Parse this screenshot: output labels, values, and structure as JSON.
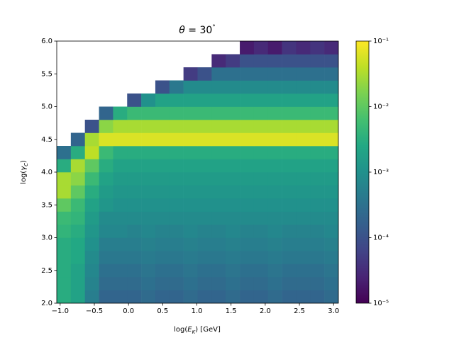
{
  "chart_data": {
    "type": "heatmap",
    "title": [
      "θ",
      " = 30",
      "°"
    ],
    "x_label": [
      "log(",
      "E",
      "K",
      ") [GeV]"
    ],
    "y_label": [
      "log(",
      "γ",
      "C",
      ")"
    ],
    "colormap": "viridis",
    "color_scale": "log",
    "clim": [
      1e-05,
      0.1
    ],
    "cticks": [
      {
        "value": 1e-05,
        "label": "10⁻⁵"
      },
      {
        "value": 0.0001,
        "label": "10⁻⁴"
      },
      {
        "value": 0.001,
        "label": "10⁻³"
      },
      {
        "value": 0.01,
        "label": "10⁻²"
      },
      {
        "value": 0.1,
        "label": "10⁻¹"
      }
    ],
    "xlim": [
      -1.05,
      3.07
    ],
    "ylim": [
      2.0,
      6.0
    ],
    "xticks": [
      {
        "value": -1.0,
        "label": "−1.0"
      },
      {
        "value": -0.5,
        "label": "−0.5"
      },
      {
        "value": 0.0,
        "label": "0.0"
      },
      {
        "value": 0.5,
        "label": "0.5"
      },
      {
        "value": 1.0,
        "label": "1.0"
      },
      {
        "value": 1.5,
        "label": "1.5"
      },
      {
        "value": 2.0,
        "label": "2.0"
      },
      {
        "value": 2.5,
        "label": "2.5"
      },
      {
        "value": 3.0,
        "label": "3.0"
      }
    ],
    "yticks": [
      {
        "value": 2.0,
        "label": "2.0"
      },
      {
        "value": 2.5,
        "label": "2.5"
      },
      {
        "value": 3.0,
        "label": "3.0"
      },
      {
        "value": 3.5,
        "label": "3.5"
      },
      {
        "value": 4.0,
        "label": "4.0"
      },
      {
        "value": 4.5,
        "label": "4.5"
      },
      {
        "value": 5.0,
        "label": "5.0"
      },
      {
        "value": 5.5,
        "label": "5.5"
      },
      {
        "value": 6.0,
        "label": "6.0"
      }
    ],
    "x_bins": [
      -1.05,
      -0.844,
      -0.638,
      -0.432,
      -0.226,
      -0.02,
      0.186,
      0.392,
      0.598,
      0.804,
      1.01,
      1.216,
      1.422,
      1.628,
      1.834,
      2.04,
      2.246,
      2.452,
      2.658,
      2.864,
      3.07
    ],
    "y_bins": [
      2.0,
      2.2,
      2.4,
      2.6,
      2.8,
      3.0,
      3.2,
      3.4,
      3.6,
      3.8,
      4.0,
      4.2,
      4.4,
      4.6,
      4.8,
      5.0,
      5.2,
      5.4,
      5.6,
      5.8,
      6.0
    ],
    "values": [
      [
        0.003,
        0.002,
        0.0005,
        0.0002,
        0.0002,
        0.0002,
        0.00025,
        0.0002,
        0.0002,
        0.00025,
        0.0002,
        0.0002,
        0.00025,
        0.0002,
        0.0002,
        0.00025,
        0.0002,
        0.0002,
        0.0002,
        0.00025
      ],
      [
        0.003,
        0.002,
        0.0006,
        0.00025,
        0.00025,
        0.00025,
        0.0003,
        0.00025,
        0.00025,
        0.0003,
        0.00025,
        0.00025,
        0.0003,
        0.00025,
        0.00025,
        0.0003,
        0.00025,
        0.00025,
        0.00025,
        0.0003
      ],
      [
        0.003,
        0.002,
        0.0007,
        0.0003,
        0.0003,
        0.0003,
        0.00035,
        0.0003,
        0.0003,
        0.00035,
        0.0003,
        0.0003,
        0.00035,
        0.0003,
        0.0003,
        0.00035,
        0.0003,
        0.0003,
        0.0003,
        0.00035
      ],
      [
        0.003,
        0.0025,
        0.0008,
        0.0004,
        0.0004,
        0.0004,
        0.00045,
        0.0004,
        0.0004,
        0.00045,
        0.0004,
        0.0004,
        0.00045,
        0.0004,
        0.0004,
        0.00045,
        0.0004,
        0.0004,
        0.0004,
        0.00045
      ],
      [
        0.003,
        0.0025,
        0.001,
        0.0005,
        0.0005,
        0.0005,
        0.00055,
        0.0005,
        0.0005,
        0.00055,
        0.0005,
        0.0005,
        0.00055,
        0.0005,
        0.0005,
        0.00055,
        0.0005,
        0.0005,
        0.0005,
        0.00055
      ],
      [
        0.004,
        0.003,
        0.0012,
        0.0007,
        0.0007,
        0.0006,
        0.0007,
        0.0006,
        0.0006,
        0.0007,
        0.0006,
        0.0006,
        0.0007,
        0.0006,
        0.0006,
        0.0007,
        0.0006,
        0.0006,
        0.0006,
        0.0007
      ],
      [
        0.005,
        0.004,
        0.0015,
        0.0008,
        0.0008,
        0.0008,
        0.0008,
        0.0008,
        0.0008,
        0.0008,
        0.0008,
        0.0008,
        0.0008,
        0.0008,
        0.0008,
        0.0008,
        0.0008,
        0.0008,
        0.0008,
        0.0008
      ],
      [
        0.01,
        0.005,
        0.002,
        0.0012,
        0.001,
        0.001,
        0.001,
        0.001,
        0.001,
        0.001,
        0.001,
        0.001,
        0.001,
        0.001,
        0.001,
        0.001,
        0.001,
        0.001,
        0.001,
        0.001
      ],
      [
        0.03,
        0.01,
        0.003,
        0.0015,
        0.0012,
        0.0012,
        0.0012,
        0.0012,
        0.0012,
        0.0012,
        0.0012,
        0.0012,
        0.0012,
        0.0012,
        0.0012,
        0.0012,
        0.0012,
        0.0012,
        0.0012,
        0.0012
      ],
      [
        0.03,
        0.02,
        0.005,
        0.002,
        0.0015,
        0.0015,
        0.0015,
        0.0015,
        0.0015,
        0.0015,
        0.0015,
        0.0015,
        0.0015,
        0.0015,
        0.0015,
        0.0015,
        0.0015,
        0.0015,
        0.0015,
        0.0015
      ],
      [
        0.003,
        0.03,
        0.01,
        0.003,
        0.002,
        0.002,
        0.002,
        0.002,
        0.002,
        0.002,
        0.002,
        0.002,
        0.002,
        0.002,
        0.002,
        0.002,
        0.002,
        0.002,
        0.002,
        0.002
      ],
      [
        0.0003,
        0.003,
        0.04,
        0.005,
        0.003,
        0.003,
        0.003,
        0.003,
        0.003,
        0.003,
        0.003,
        0.003,
        0.003,
        0.003,
        0.003,
        0.003,
        0.003,
        0.003,
        0.003,
        0.003
      ],
      [
        null,
        0.0002,
        0.03,
        0.06,
        0.06,
        0.06,
        0.06,
        0.06,
        0.06,
        0.06,
        0.06,
        0.06,
        0.06,
        0.06,
        0.06,
        0.06,
        0.06,
        0.06,
        0.06,
        0.06
      ],
      [
        null,
        null,
        0.0001,
        0.02,
        0.03,
        0.03,
        0.03,
        0.03,
        0.03,
        0.03,
        0.03,
        0.03,
        0.03,
        0.03,
        0.03,
        0.03,
        0.03,
        0.03,
        0.03,
        0.03
      ],
      [
        null,
        null,
        null,
        0.0002,
        0.003,
        0.005,
        0.005,
        0.005,
        0.005,
        0.005,
        0.005,
        0.005,
        0.005,
        0.005,
        0.005,
        0.005,
        0.005,
        0.005,
        0.005,
        0.005
      ],
      [
        null,
        null,
        null,
        null,
        null,
        0.0001,
        0.001,
        0.002,
        0.002,
        0.002,
        0.002,
        0.002,
        0.002,
        0.002,
        0.002,
        0.002,
        0.002,
        0.002,
        0.002,
        0.002
      ],
      [
        null,
        null,
        null,
        null,
        null,
        null,
        null,
        0.0001,
        0.0004,
        0.0008,
        0.0008,
        0.0008,
        0.0008,
        0.0008,
        0.0008,
        0.0008,
        0.0008,
        0.0008,
        0.0008,
        0.0008
      ],
      [
        null,
        null,
        null,
        null,
        null,
        null,
        null,
        null,
        null,
        5e-05,
        0.0001,
        0.0003,
        0.0003,
        0.0003,
        0.0003,
        0.0003,
        0.0003,
        0.0003,
        0.0003,
        0.0003
      ],
      [
        null,
        null,
        null,
        null,
        null,
        null,
        null,
        null,
        null,
        null,
        null,
        3e-05,
        5e-05,
        0.0001,
        0.0001,
        0.0001,
        0.0001,
        0.0001,
        0.0001,
        0.0001
      ],
      [
        null,
        null,
        null,
        null,
        null,
        null,
        null,
        null,
        null,
        null,
        null,
        null,
        null,
        2e-05,
        3e-05,
        2e-05,
        4e-05,
        3e-05,
        4e-05,
        3e-05
      ]
    ]
  }
}
